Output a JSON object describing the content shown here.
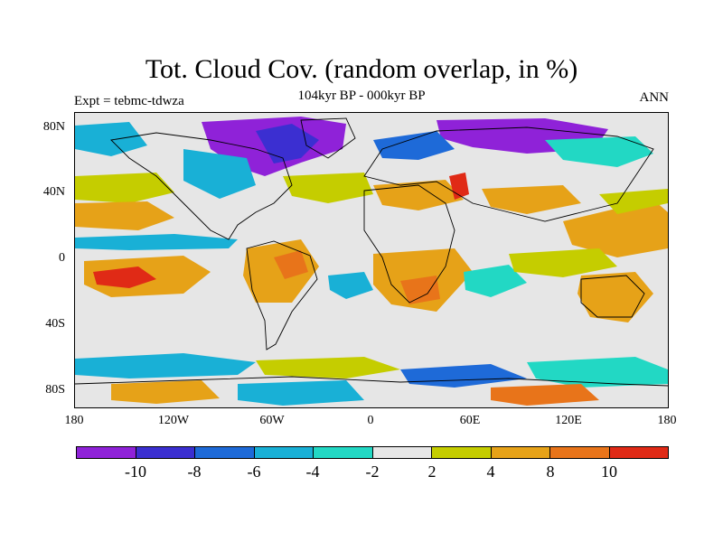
{
  "figure": {
    "title": "Tot. Cloud Cov. (random overlap, in %)",
    "subtitle": "104kyr BP - 000kyr BP",
    "expt_label": "Expt = tebmc-tdwza",
    "season_label": "ANN"
  },
  "axes": {
    "y_ticks": [
      {
        "label": "80N",
        "lat": 80
      },
      {
        "label": "40N",
        "lat": 40
      },
      {
        "label": "0",
        "lat": 0
      },
      {
        "label": "40S",
        "lat": -40
      },
      {
        "label": "80S",
        "lat": -80
      }
    ],
    "x_ticks": [
      {
        "label": "180",
        "lon": -180
      },
      {
        "label": "120W",
        "lon": -120
      },
      {
        "label": "60W",
        "lon": -60
      },
      {
        "label": "0",
        "lon": 0
      },
      {
        "label": "60E",
        "lon": 60
      },
      {
        "label": "120E",
        "lon": 120
      },
      {
        "label": "180",
        "lon": 180
      }
    ],
    "lat_range": [
      -90,
      90
    ],
    "lon_range": [
      -180,
      180
    ]
  },
  "colorbar": {
    "colors": [
      "#8f22d8",
      "#3b2fd1",
      "#1e6ad8",
      "#19b0d6",
      "#22d8c4",
      "#e6e6e6",
      "#c5cd00",
      "#e6a218",
      "#e8741a",
      "#e02a16"
    ],
    "labels": [
      {
        "text": "-10",
        "after_index": 1
      },
      {
        "text": "-8",
        "after_index": 2
      },
      {
        "text": "-6",
        "after_index": 3
      },
      {
        "text": "-4",
        "after_index": 4
      },
      {
        "text": "-2",
        "after_index": 5
      },
      {
        "text": "2",
        "after_index": 6
      },
      {
        "text": "4",
        "after_index": 7
      },
      {
        "text": "8",
        "after_index": 8
      },
      {
        "text": "10",
        "after_index": 9
      }
    ]
  }
}
